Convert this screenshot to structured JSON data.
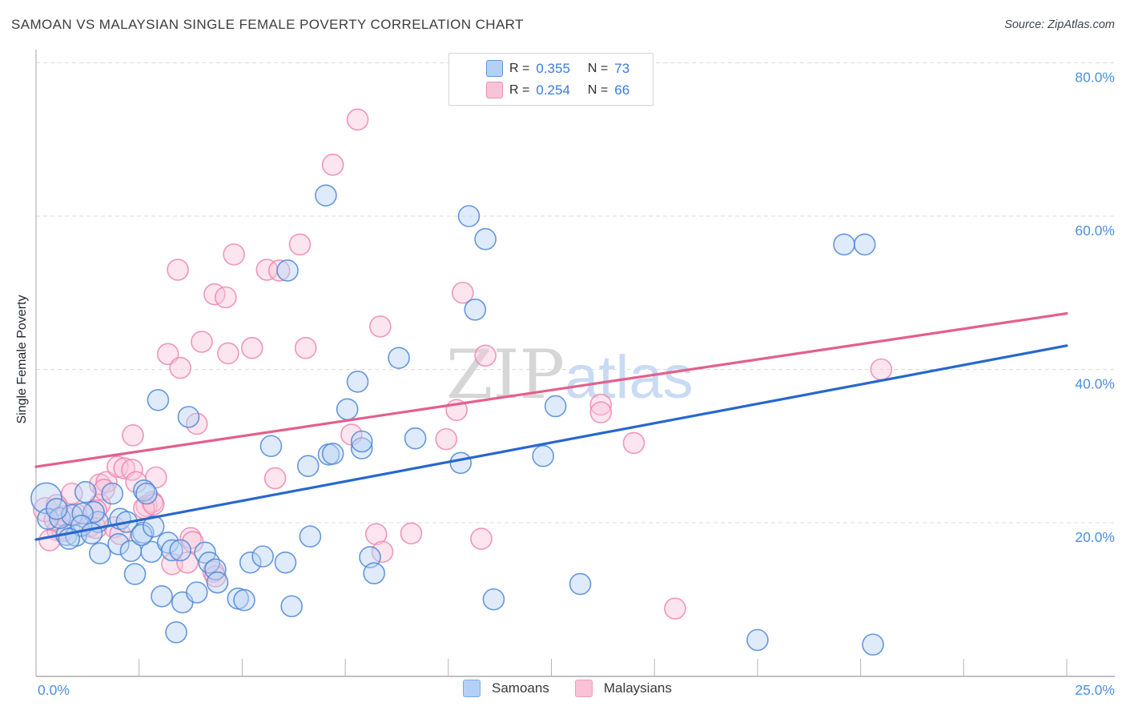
{
  "header": {
    "title": "SAMOAN VS MALAYSIAN SINGLE FEMALE POVERTY CORRELATION CHART",
    "source": "Source: ZipAtlas.com"
  },
  "legend_box": {
    "items": [
      {
        "r_label": "R",
        "r_value": "0.355",
        "n_label": "N",
        "n_value": "73",
        "swatch_fill": "#b3d1f7",
        "swatch_border": "#5f97dd"
      },
      {
        "r_label": "R",
        "r_value": "0.254",
        "n_label": "N",
        "n_value": "66",
        "swatch_fill": "#f9c2d6",
        "swatch_border": "#ea92b5"
      }
    ],
    "eq": "="
  },
  "axes": {
    "y_label": "Single Female Poverty",
    "y_tick_labels": [
      "80.0%",
      "60.0%",
      "40.0%",
      "20.0%"
    ],
    "x_min_label": "0.0%",
    "x_max_label": "25.0%"
  },
  "bottom_legend": {
    "items": [
      {
        "label": "Samoans",
        "swatch_fill": "#b3d1f7",
        "swatch_border": "#7ca7e8"
      },
      {
        "label": "Malaysians",
        "swatch_fill": "#f9c2d6",
        "swatch_border": "#ef9cbc"
      }
    ]
  },
  "watermark": {
    "part1": "ZIP",
    "part2": "atlas"
  },
  "colors": {
    "grid": "#dcdcdc",
    "axis": "#b5b5b5",
    "tick_label_blue": "#4a90e2",
    "blue_fill": "#b9d3f5",
    "blue_stroke": "#4b86d8",
    "pink_fill": "#f9c6da",
    "pink_stroke": "#ee85ae",
    "trend_blue": "#2767ce",
    "trend_pink": "#e45f8b",
    "watermark_gray": "#d6d6d6",
    "watermark_blue": "#c9dbf4"
  },
  "chart_data": {
    "type": "scatter",
    "title": "SAMOAN VS MALAYSIAN SINGLE FEMALE POVERTY CORRELATION CHART",
    "xlabel": "",
    "ylabel": "Single Female Poverty",
    "xlim": [
      0,
      25
    ],
    "ylim": [
      0,
      82
    ],
    "x_ticks_every_pct": 2.5,
    "gridlines_y_pct": [
      20,
      40,
      60,
      80
    ],
    "legend_position": "bottom-center",
    "series": [
      {
        "name": "Samoans",
        "R": 0.355,
        "N": 73,
        "points": [
          [
            0.25,
            23.2,
            19
          ],
          [
            1.2,
            24.0
          ],
          [
            0.74,
            18.4
          ],
          [
            1.5,
            20.1
          ],
          [
            2.0,
            17.2
          ],
          [
            2.3,
            16.3
          ],
          [
            2.6,
            18.7
          ],
          [
            2.8,
            16.2
          ],
          [
            3.2,
            17.4
          ],
          [
            3.3,
            16.4
          ],
          [
            3.5,
            16.4
          ],
          [
            4.1,
            16.1
          ],
          [
            4.2,
            14.8
          ],
          [
            4.35,
            13.9
          ],
          [
            4.4,
            12.2
          ],
          [
            2.4,
            13.3
          ],
          [
            3.05,
            10.4
          ],
          [
            3.55,
            9.6
          ],
          [
            3.9,
            10.9
          ],
          [
            4.9,
            10.1
          ],
          [
            5.05,
            9.9
          ],
          [
            5.2,
            14.8
          ],
          [
            5.5,
            15.6
          ],
          [
            6.05,
            14.8
          ],
          [
            6.2,
            9.1
          ],
          [
            6.65,
            18.2
          ],
          [
            3.4,
            5.7
          ],
          [
            8.1,
            15.5
          ],
          [
            8.2,
            13.4
          ],
          [
            1.55,
            16.0
          ],
          [
            2.62,
            24.2
          ],
          [
            2.68,
            23.8
          ],
          [
            1.4,
            21.4
          ],
          [
            2.04,
            20.5
          ],
          [
            2.2,
            20.1
          ],
          [
            0.97,
            18.3
          ],
          [
            2.56,
            18.4
          ],
          [
            2.85,
            19.5
          ],
          [
            1.85,
            23.8
          ],
          [
            0.29,
            20.5
          ],
          [
            0.58,
            20.6
          ],
          [
            0.87,
            21.0
          ],
          [
            1.13,
            21.2
          ],
          [
            6.6,
            27.4
          ],
          [
            7.1,
            28.9
          ],
          [
            7.9,
            29.7
          ],
          [
            10.3,
            27.8
          ],
          [
            12.3,
            28.7
          ],
          [
            2.96,
            36.0
          ],
          [
            3.7,
            33.8
          ],
          [
            5.7,
            30.0
          ],
          [
            7.2,
            29.0
          ],
          [
            7.55,
            34.8
          ],
          [
            7.9,
            30.6
          ],
          [
            7.8,
            38.4
          ],
          [
            8.8,
            41.5
          ],
          [
            9.2,
            31.0
          ],
          [
            7.03,
            62.7
          ],
          [
            6.1,
            52.9
          ],
          [
            10.5,
            60.0
          ],
          [
            10.9,
            57.0
          ],
          [
            10.65,
            47.8
          ],
          [
            12.6,
            35.2
          ],
          [
            13.2,
            12.0
          ],
          [
            11.1,
            10.0
          ],
          [
            17.5,
            4.7
          ],
          [
            20.3,
            4.1
          ],
          [
            19.6,
            56.3
          ],
          [
            20.1,
            56.3
          ],
          [
            1.1,
            19.6
          ],
          [
            0.8,
            17.9
          ],
          [
            1.35,
            18.6
          ],
          [
            0.5,
            21.8
          ]
        ],
        "trend": {
          "x1": 0,
          "y1": 17.8,
          "x2": 25,
          "y2": 43.1
        }
      },
      {
        "name": "Malaysians",
        "R": 0.254,
        "N": 66,
        "points": [
          [
            0.23,
            21.7,
            15
          ],
          [
            0.87,
            23.8
          ],
          [
            1.55,
            22.4
          ],
          [
            1.46,
            21.6
          ],
          [
            1.3,
            19.5
          ],
          [
            1.46,
            19.3
          ],
          [
            0.52,
            19.0
          ],
          [
            0.64,
            18.9
          ],
          [
            1.55,
            25.0
          ],
          [
            1.71,
            25.3
          ],
          [
            1.98,
            27.3
          ],
          [
            2.14,
            27.1
          ],
          [
            2.33,
            26.9
          ],
          [
            2.43,
            25.3
          ],
          [
            2.68,
            22.2
          ],
          [
            2.82,
            22.7
          ],
          [
            1.9,
            19.4
          ],
          [
            2.04,
            18.5
          ],
          [
            2.62,
            21.9
          ],
          [
            2.85,
            22.4
          ],
          [
            2.91,
            25.9
          ],
          [
            3.3,
            14.6
          ],
          [
            3.67,
            14.8
          ],
          [
            3.75,
            18.0
          ],
          [
            3.8,
            17.5
          ],
          [
            4.3,
            13.6
          ],
          [
            4.35,
            13.0
          ],
          [
            5.8,
            25.8
          ],
          [
            8.25,
            18.5
          ],
          [
            8.4,
            16.2
          ],
          [
            9.1,
            18.6
          ],
          [
            10.8,
            17.9
          ],
          [
            15.5,
            8.8
          ],
          [
            20.5,
            40.0
          ],
          [
            13.7,
            35.4
          ],
          [
            13.7,
            34.4
          ],
          [
            14.5,
            30.4
          ],
          [
            10.2,
            34.7
          ],
          [
            9.95,
            30.9
          ],
          [
            10.9,
            41.8
          ],
          [
            10.35,
            50.0
          ],
          [
            3.44,
            53.0
          ],
          [
            4.8,
            55.0
          ],
          [
            6.4,
            56.3
          ],
          [
            5.6,
            53.0
          ],
          [
            5.9,
            52.9
          ],
          [
            4.33,
            49.8
          ],
          [
            4.6,
            49.4
          ],
          [
            8.35,
            45.6
          ],
          [
            4.02,
            43.6
          ],
          [
            3.2,
            42.0
          ],
          [
            3.5,
            40.2
          ],
          [
            4.66,
            42.1
          ],
          [
            5.24,
            42.8
          ],
          [
            6.54,
            42.8
          ],
          [
            7.8,
            72.6
          ],
          [
            7.2,
            66.7
          ],
          [
            2.35,
            31.4
          ],
          [
            3.9,
            32.9
          ],
          [
            7.65,
            31.5
          ],
          [
            0.45,
            20.4
          ],
          [
            0.68,
            20.9
          ],
          [
            0.97,
            21.1
          ],
          [
            0.33,
            17.7
          ],
          [
            1.65,
            24.3
          ],
          [
            0.5,
            22.3
          ]
        ],
        "trend": {
          "x1": 0,
          "y1": 27.3,
          "x2": 25,
          "y2": 47.3
        }
      }
    ]
  }
}
